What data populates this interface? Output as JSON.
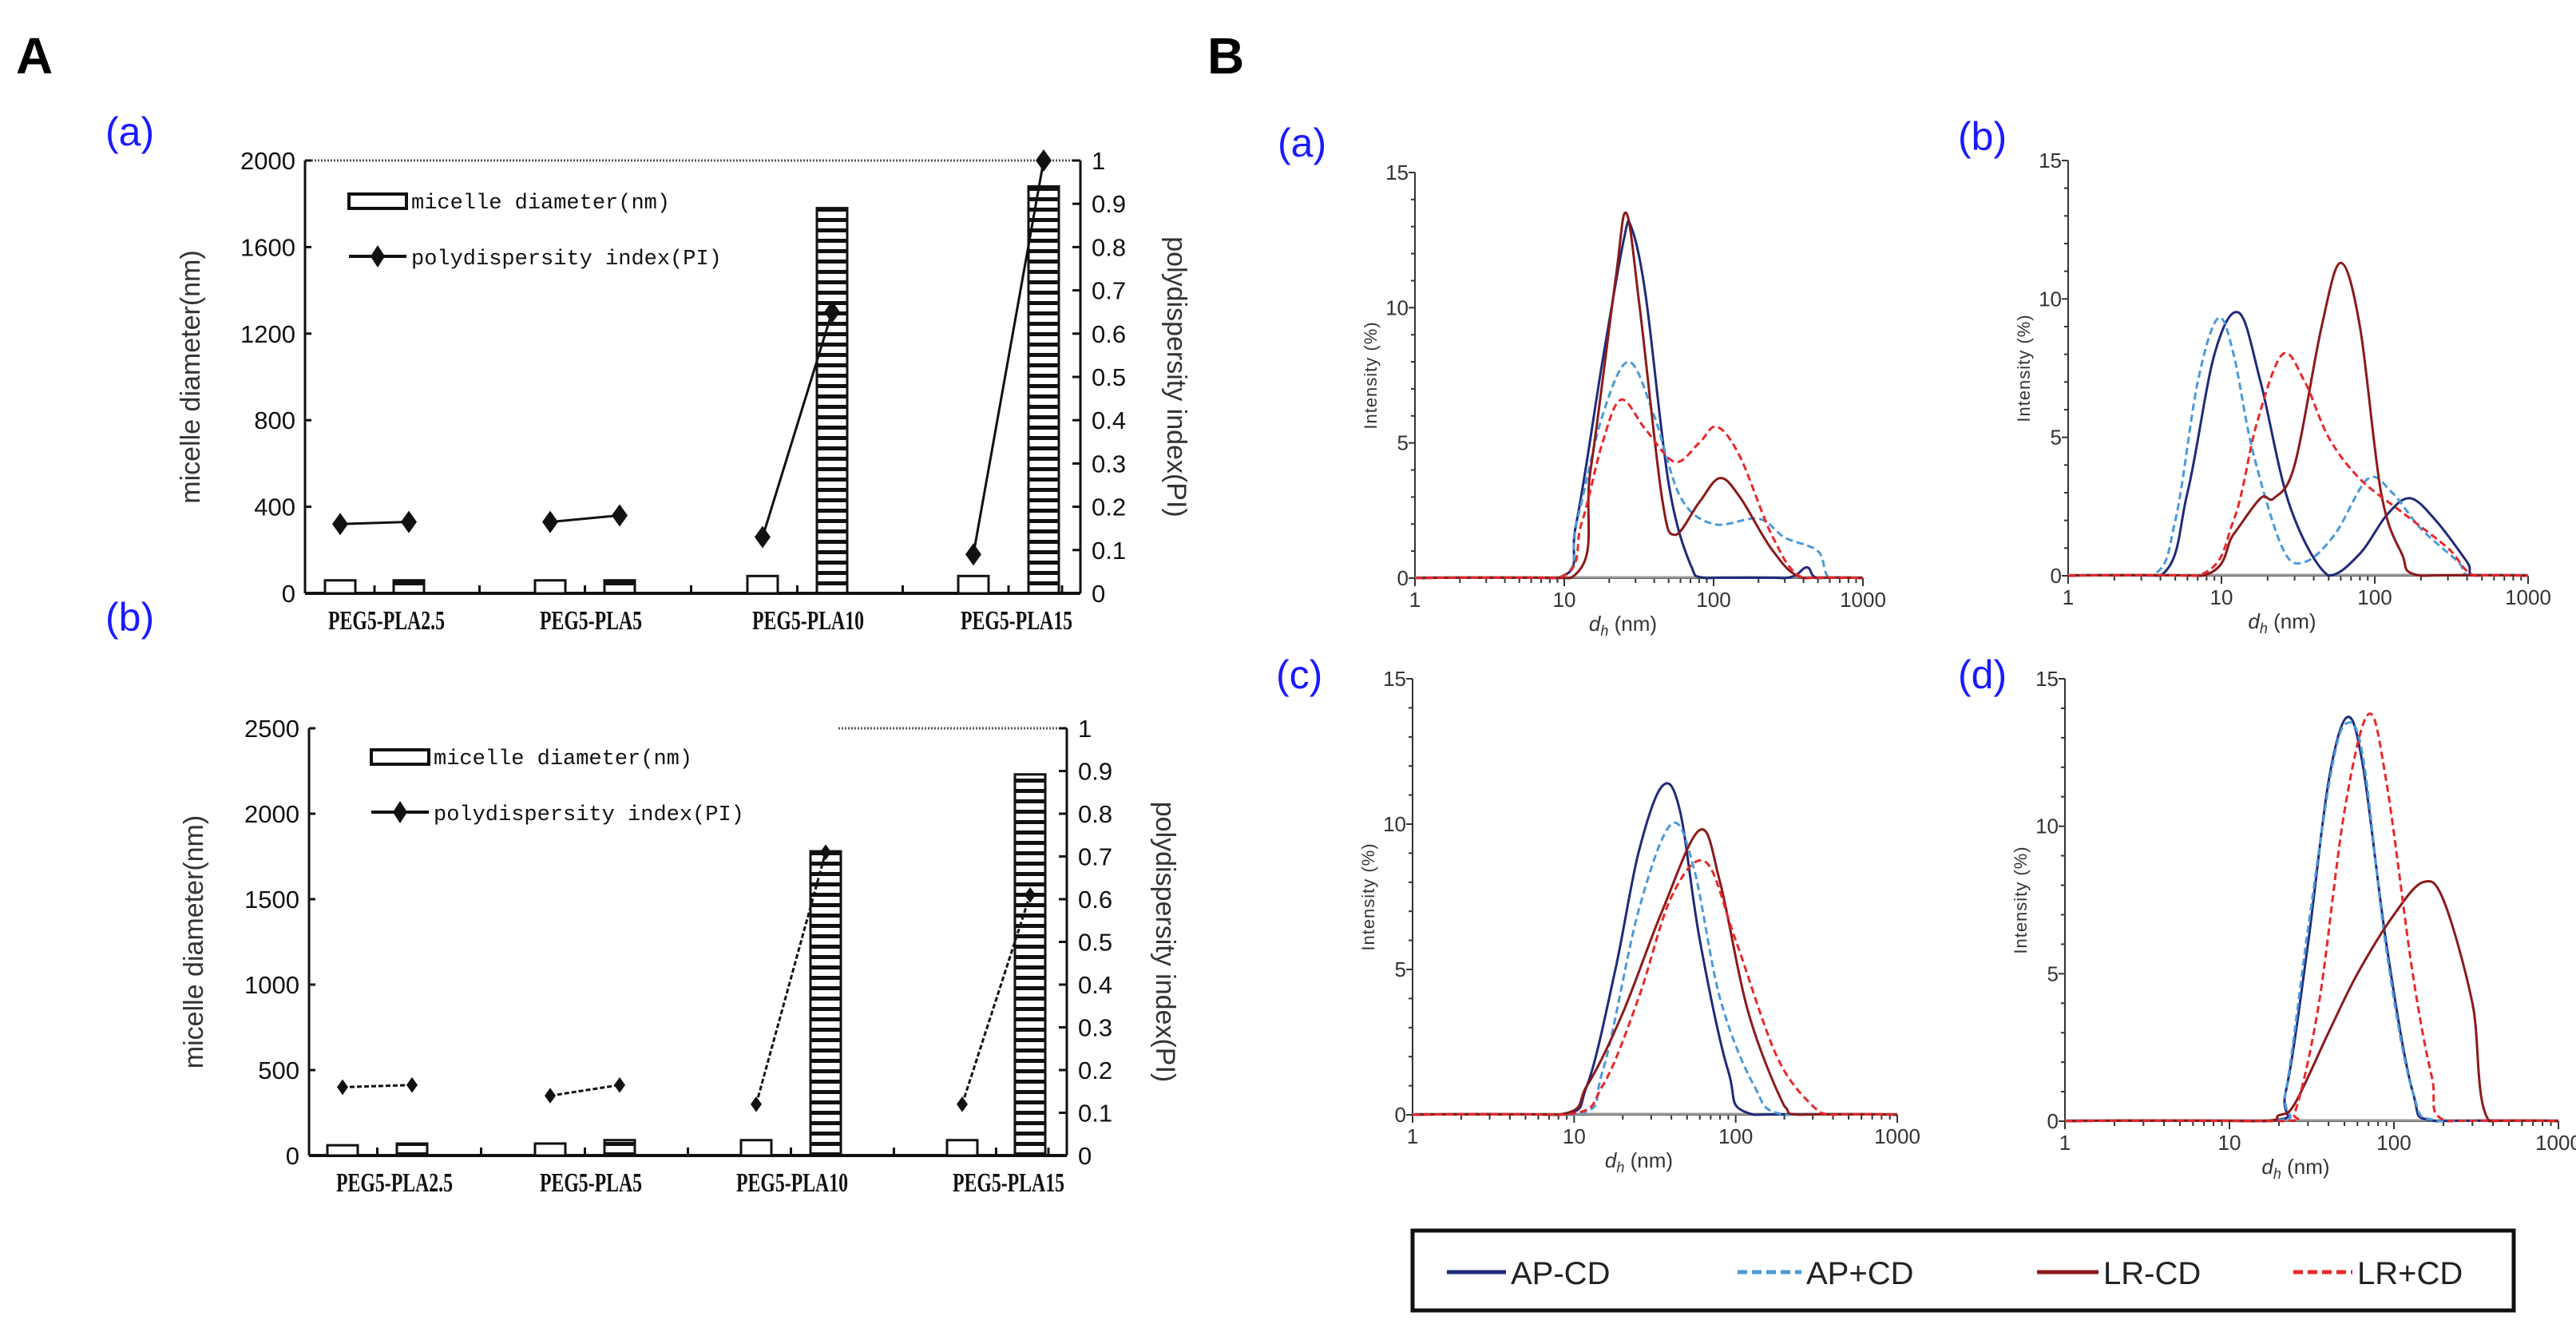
{
  "figure": {
    "panel_A_label": "A",
    "panel_B_label": "B"
  },
  "legend": {
    "items": [
      {
        "label": "AP-CD",
        "color": "#1f2a7a",
        "style": "solid"
      },
      {
        "label": "AP+CD",
        "color": "#4a9ad8",
        "style": "dashed"
      },
      {
        "label": "LR-CD",
        "color": "#8b1a1a",
        "style": "solid"
      },
      {
        "label": "LR+CD",
        "color": "#e8282a",
        "style": "dashed"
      }
    ]
  },
  "chart_data": [
    {
      "type": "bar",
      "panel_label": "(a)",
      "categories": [
        "PEG5-PLA2.5",
        "PEG5-PLA5",
        "PEG5-PLA10",
        "PEG5-PLA15"
      ],
      "ylabel": "micelle diameter(nm)",
      "y2label": "polydispersity index(PI)",
      "ylim": [
        0,
        2000
      ],
      "y2lim": [
        0,
        1
      ],
      "yticks": [
        "0",
        "400",
        "800",
        "1200",
        "1600",
        "2000"
      ],
      "y2ticks": [
        "0",
        "0.1",
        "0.2",
        "0.3",
        "0.4",
        "0.5",
        "0.6",
        "0.7",
        "0.8",
        "0.9",
        "1"
      ],
      "series": [
        {
          "name": "micelle diameter(nm)",
          "type": "bar",
          "axis": "left",
          "values": [
            [
              60,
              60
            ],
            [
              60,
              60
            ],
            [
              80,
              1780
            ],
            [
              80,
              1880
            ]
          ]
        },
        {
          "name": "polydispersity index(PI)",
          "type": "line",
          "axis": "right",
          "values": [
            [
              0.16,
              0.165
            ],
            [
              0.165,
              0.18
            ],
            [
              0.13,
              0.65
            ],
            [
              0.09,
              1.0
            ]
          ]
        }
      ]
    },
    {
      "type": "bar",
      "panel_label": "(b)",
      "categories": [
        "PEG5-PLA2.5",
        "PEG5-PLA5",
        "PEG5-PLA10",
        "PEG5-PLA15"
      ],
      "ylabel": "micelle diameter(nm)",
      "y2label": "polydispersity index(PI)",
      "ylim": [
        0,
        2500
      ],
      "y2lim": [
        0,
        1
      ],
      "yticks": [
        "0",
        "500",
        "1000",
        "1500",
        "2000",
        "2500"
      ],
      "y2ticks": [
        "0",
        "0.1",
        "0.2",
        "0.3",
        "0.4",
        "0.5",
        "0.6",
        "0.7",
        "0.8",
        "0.9",
        "1"
      ],
      "series": [
        {
          "name": "micelle diameter(nm)",
          "type": "bar",
          "axis": "left",
          "values": [
            [
              60,
              70
            ],
            [
              70,
              90
            ],
            [
              90,
              1780
            ],
            [
              90,
              2230
            ]
          ]
        },
        {
          "name": "polydispersity index(PI)",
          "type": "line",
          "axis": "right",
          "values": [
            [
              0.16,
              0.165
            ],
            [
              0.14,
              0.165
            ],
            [
              0.12,
              0.71
            ],
            [
              0.12,
              0.61
            ]
          ]
        }
      ]
    },
    {
      "type": "line",
      "panel_label": "(a)",
      "ylabel": "Intensity (%)",
      "xlabel_var": "d",
      "xlabel_sub": "h",
      "xlabel_unit": " (nm)",
      "xscale": "log",
      "xlim": [
        1,
        1000
      ],
      "ylim": [
        0,
        15
      ],
      "xticks": [
        "1",
        "10",
        "100",
        "1000"
      ],
      "yticks": [
        "0",
        "5",
        "10",
        "15"
      ],
      "series": [
        {
          "legend_index": 0,
          "points": [
            [
              9,
              0
            ],
            [
              12,
              2
            ],
            [
              18,
              8
            ],
            [
              25,
              12.5
            ],
            [
              28,
              13
            ],
            [
              35,
              10.5
            ],
            [
              50,
              3.5
            ],
            [
              70,
              0.5
            ],
            [
              90,
              0
            ],
            [
              300,
              0
            ],
            [
              420,
              0.4
            ],
            [
              500,
              0
            ]
          ]
        },
        {
          "legend_index": 1,
          "points": [
            [
              9,
              0
            ],
            [
              12,
              2
            ],
            [
              18,
              6
            ],
            [
              27,
              8
            ],
            [
              40,
              6
            ],
            [
              60,
              3
            ],
            [
              100,
              2
            ],
            [
              200,
              2.2
            ],
            [
              300,
              1.5
            ],
            [
              500,
              1
            ],
            [
              600,
              0
            ]
          ]
        },
        {
          "legend_index": 2,
          "points": [
            [
              11,
              0
            ],
            [
              15,
              4
            ],
            [
              22,
              11
            ],
            [
              26,
              13.5
            ],
            [
              32,
              10
            ],
            [
              45,
              3
            ],
            [
              55,
              1.6
            ],
            [
              80,
              2.8
            ],
            [
              110,
              3.7
            ],
            [
              150,
              3
            ],
            [
              250,
              1
            ],
            [
              400,
              0
            ]
          ]
        },
        {
          "legend_index": 3,
          "points": [
            [
              9,
              0
            ],
            [
              13,
              2
            ],
            [
              18,
              5
            ],
            [
              24,
              6.6
            ],
            [
              35,
              5.5
            ],
            [
              55,
              4.3
            ],
            [
              80,
              5
            ],
            [
              105,
              5.6
            ],
            [
              150,
              4.5
            ],
            [
              250,
              1.5
            ],
            [
              400,
              0
            ]
          ]
        }
      ]
    },
    {
      "type": "line",
      "panel_label": "(b)",
      "ylabel": "Intensity (%)",
      "xlabel_var": "d",
      "xlabel_sub": "h",
      "xlabel_unit": " (nm)",
      "xscale": "log",
      "xlim": [
        1,
        1000
      ],
      "ylim": [
        0,
        15
      ],
      "xticks": [
        "1",
        "10",
        "100",
        "1000"
      ],
      "yticks": [
        "0",
        "5",
        "10",
        "15"
      ],
      "series": [
        {
          "legend_index": 0,
          "points": [
            [
              4,
              0
            ],
            [
              6,
              3
            ],
            [
              9,
              8
            ],
            [
              13,
              9.5
            ],
            [
              18,
              7
            ],
            [
              28,
              2.5
            ],
            [
              50,
              0
            ],
            [
              80,
              0.8
            ],
            [
              120,
              2.2
            ],
            [
              170,
              2.8
            ],
            [
              250,
              2
            ],
            [
              400,
              0.5
            ],
            [
              450,
              0
            ]
          ]
        },
        {
          "legend_index": 1,
          "points": [
            [
              3.5,
              0
            ],
            [
              5,
              2
            ],
            [
              7,
              7
            ],
            [
              9.5,
              9.3
            ],
            [
              12,
              8
            ],
            [
              16,
              4.5
            ],
            [
              25,
              1
            ],
            [
              35,
              0.5
            ],
            [
              55,
              1.5
            ],
            [
              90,
              3.5
            ],
            [
              130,
              3
            ],
            [
              200,
              1.7
            ],
            [
              350,
              0.5
            ],
            [
              420,
              0
            ]
          ]
        },
        {
          "legend_index": 2,
          "points": [
            [
              7.5,
              0
            ],
            [
              12,
              1.5
            ],
            [
              18,
              2.8
            ],
            [
              22,
              2.8
            ],
            [
              30,
              4
            ],
            [
              45,
              9
            ],
            [
              60,
              11.3
            ],
            [
              80,
              9
            ],
            [
              110,
              3
            ],
            [
              150,
              0.8
            ],
            [
              200,
              0
            ]
          ]
        },
        {
          "legend_index": 3,
          "points": [
            [
              7,
              0
            ],
            [
              12,
              2
            ],
            [
              17,
              5.5
            ],
            [
              25,
              8
            ],
            [
              35,
              7
            ],
            [
              50,
              5
            ],
            [
              80,
              3.5
            ],
            [
              150,
              2.3
            ],
            [
              300,
              1
            ],
            [
              450,
              0
            ]
          ]
        }
      ]
    },
    {
      "type": "line",
      "panel_label": "(c)",
      "ylabel": "Intensity (%)",
      "xlabel_var": "d",
      "xlabel_sub": "h",
      "xlabel_unit": " (nm)",
      "xscale": "log",
      "xlim": [
        1,
        1000
      ],
      "ylim": [
        0,
        15
      ],
      "xticks": [
        "1",
        "10",
        "100",
        "1000"
      ],
      "yticks": [
        "0",
        "5",
        "10",
        "15"
      ],
      "series": [
        {
          "legend_index": 0,
          "points": [
            [
              8,
              0
            ],
            [
              12,
              1
            ],
            [
              18,
              5
            ],
            [
              25,
              9
            ],
            [
              35,
              11.3
            ],
            [
              45,
              10.5
            ],
            [
              60,
              6
            ],
            [
              90,
              1.5
            ],
            [
              130,
              0
            ]
          ]
        },
        {
          "legend_index": 1,
          "points": [
            [
              10,
              0
            ],
            [
              15,
              1.5
            ],
            [
              25,
              7
            ],
            [
              40,
              10
            ],
            [
              55,
              8.5
            ],
            [
              80,
              4
            ],
            [
              130,
              1
            ],
            [
              200,
              0
            ]
          ]
        },
        {
          "legend_index": 2,
          "points": [
            [
              8,
              0
            ],
            [
              12,
              1
            ],
            [
              20,
              3.5
            ],
            [
              35,
              7
            ],
            [
              60,
              9.8
            ],
            [
              80,
              8
            ],
            [
              120,
              3.5
            ],
            [
              200,
              0.3
            ],
            [
              250,
              0
            ]
          ]
        },
        {
          "legend_index": 3,
          "points": [
            [
              9,
              0
            ],
            [
              15,
              1
            ],
            [
              25,
              4
            ],
            [
              40,
              7.5
            ],
            [
              65,
              8.7
            ],
            [
              100,
              6
            ],
            [
              180,
              2
            ],
            [
              300,
              0.3
            ],
            [
              400,
              0
            ]
          ]
        }
      ]
    },
    {
      "type": "line",
      "panel_label": "(d)",
      "ylabel": "Intensity (%)",
      "xlabel_var": "d",
      "xlabel_sub": "h",
      "xlabel_unit": " (nm)",
      "xscale": "log",
      "xlim": [
        1,
        1000
      ],
      "ylim": [
        0,
        15
      ],
      "xticks": [
        "1",
        "10",
        "100",
        "1000"
      ],
      "yticks": [
        "0",
        "5",
        "10",
        "15"
      ],
      "series": [
        {
          "legend_index": 0,
          "points": [
            [
              17,
              0
            ],
            [
              22,
              1
            ],
            [
              30,
              6
            ],
            [
              40,
              11.5
            ],
            [
              52,
              13.7
            ],
            [
              65,
              12
            ],
            [
              90,
              6
            ],
            [
              130,
              1
            ],
            [
              180,
              0
            ]
          ]
        },
        {
          "legend_index": 1,
          "points": [
            [
              18,
              0
            ],
            [
              22,
              1
            ],
            [
              30,
              6.5
            ],
            [
              42,
              12
            ],
            [
              52,
              13.5
            ],
            [
              65,
              12.3
            ],
            [
              90,
              5.8
            ],
            [
              130,
              1
            ],
            [
              190,
              0
            ]
          ]
        },
        {
          "legend_index": 2,
          "points": [
            [
              14,
              0
            ],
            [
              20,
              0.2
            ],
            [
              25,
              0.6
            ],
            [
              40,
              3
            ],
            [
              60,
              5
            ],
            [
              100,
              7
            ],
            [
              150,
              8.1
            ],
            [
              200,
              7.5
            ],
            [
              300,
              4
            ],
            [
              380,
              0
            ]
          ]
        },
        {
          "legend_index": 3,
          "points": [
            [
              20,
              0
            ],
            [
              25,
              0.3
            ],
            [
              35,
              4
            ],
            [
              50,
              10.5
            ],
            [
              70,
              13.8
            ],
            [
              90,
              11.5
            ],
            [
              130,
              5
            ],
            [
              170,
              1.5
            ],
            [
              210,
              0
            ]
          ]
        }
      ]
    }
  ]
}
